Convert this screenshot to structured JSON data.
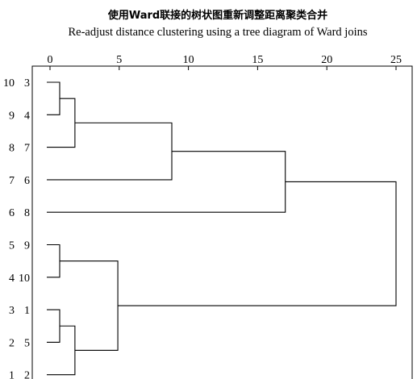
{
  "title_cn": "使用Ward联接的树状图重新调整距离聚类合并",
  "title_en": "Re-adjust distance clustering using a tree diagram of Ward joins",
  "chart_data": {
    "type": "dendrogram",
    "title": "使用Ward联接的树状图重新调整距离聚类合并",
    "subtitle": "Re-adjust distance clustering using a tree diagram of Ward joins",
    "xlim": [
      0,
      25
    ],
    "x_ticks": [
      "0",
      "5",
      "10",
      "15",
      "20",
      "25"
    ],
    "x_tick_values": [
      0,
      5,
      10,
      15,
      20,
      25
    ],
    "leaves": [
      {
        "order": "10",
        "case": "3"
      },
      {
        "order": "9",
        "case": "4"
      },
      {
        "order": "8",
        "case": "7"
      },
      {
        "order": "7",
        "case": "6"
      },
      {
        "order": "6",
        "case": "8"
      },
      {
        "order": "5",
        "case": "9"
      },
      {
        "order": "4",
        "case": "10"
      },
      {
        "order": "3",
        "case": "1"
      },
      {
        "order": "2",
        "case": "5"
      },
      {
        "order": "1",
        "case": "2"
      }
    ],
    "merges": [
      {
        "a": "leaf:0",
        "b": "leaf:1",
        "distance": 0.7
      },
      {
        "a": "node:0",
        "b": "leaf:2",
        "distance": 1.8
      },
      {
        "a": "node:1",
        "b": "leaf:3",
        "distance": 8.8
      },
      {
        "a": "node:2",
        "b": "leaf:4",
        "distance": 17.0
      },
      {
        "a": "leaf:5",
        "b": "leaf:6",
        "distance": 0.7
      },
      {
        "a": "leaf:7",
        "b": "leaf:8",
        "distance": 0.7
      },
      {
        "a": "node:5",
        "b": "leaf:9",
        "distance": 1.8
      },
      {
        "a": "node:4",
        "b": "node:6",
        "distance": 4.9
      },
      {
        "a": "node:3",
        "b": "node:7",
        "distance": 25.0
      }
    ]
  }
}
